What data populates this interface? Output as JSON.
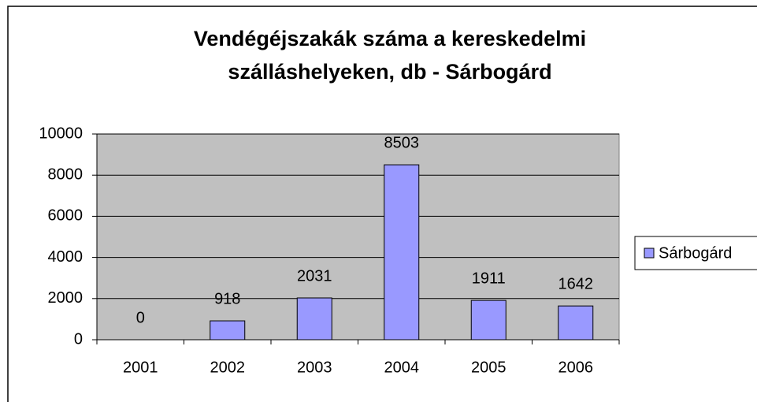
{
  "chart_data": {
    "type": "bar",
    "title": "Vendégéjszakák száma a kereskedelmi szálláshelyeken, db - Sárbogárd",
    "categories": [
      "2001",
      "2002",
      "2003",
      "2004",
      "2005",
      "2006"
    ],
    "series": [
      {
        "name": "Sárbogárd",
        "color": "#9999ff",
        "values": [
          0,
          918,
          2031,
          8503,
          1911,
          1642
        ]
      }
    ],
    "ylim": [
      0,
      10000
    ],
    "yticks": [
      0,
      2000,
      4000,
      6000,
      8000,
      10000
    ],
    "grid": true,
    "legend": "right",
    "plot_background": "#c0c0c0"
  }
}
